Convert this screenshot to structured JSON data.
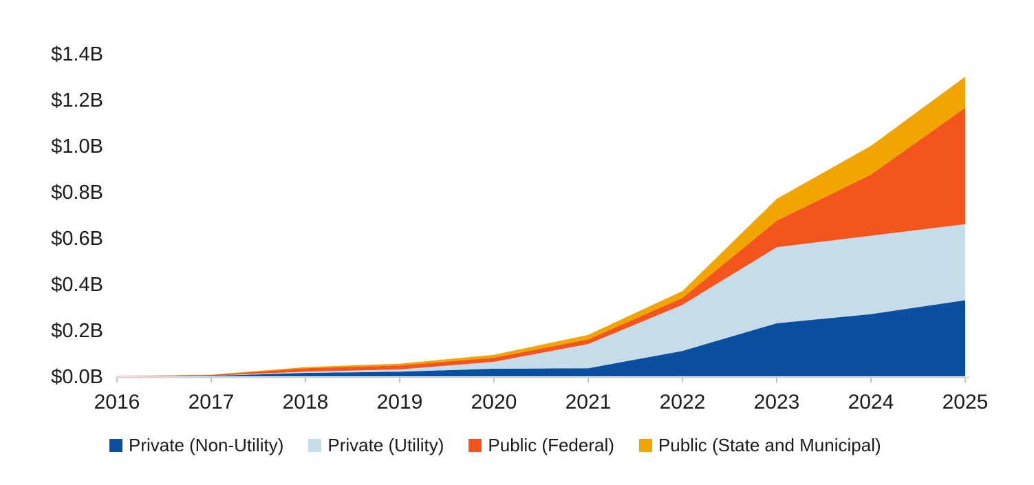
{
  "chart_data": {
    "type": "area",
    "stacked": true,
    "title": "",
    "xlabel": "",
    "ylabel": "",
    "grid": false,
    "legend_position": "bottom",
    "x_categories": [
      "2016",
      "2017",
      "2018",
      "2019",
      "2020",
      "2021",
      "2022",
      "2023",
      "2024",
      "2025"
    ],
    "y_ticks": [
      {
        "label": "$0.0B",
        "value": 0.0
      },
      {
        "label": "$0.2B",
        "value": 0.2
      },
      {
        "label": "$0.4B",
        "value": 0.4
      },
      {
        "label": "$0.6B",
        "value": 0.6
      },
      {
        "label": "$0.8B",
        "value": 0.8
      },
      {
        "label": "$1.0B",
        "value": 1.0
      },
      {
        "label": "$1.2B",
        "value": 1.2
      },
      {
        "label": "$1.4B",
        "value": 1.4
      }
    ],
    "ylim": [
      0,
      1.4
    ],
    "units": "billions of dollars",
    "series": [
      {
        "name": "Private (Non-Utility)",
        "color": "#0B4FA0",
        "values": [
          0.0,
          0.002,
          0.015,
          0.02,
          0.033,
          0.035,
          0.11,
          0.23,
          0.27,
          0.33
        ]
      },
      {
        "name": "Private (Utility)",
        "color": "#C7DCE9",
        "values": [
          0.0,
          0.001,
          0.005,
          0.01,
          0.03,
          0.105,
          0.2,
          0.33,
          0.34,
          0.33
        ]
      },
      {
        "name": "Public (Federal)",
        "color": "#F4541D",
        "values": [
          0.001,
          0.003,
          0.015,
          0.017,
          0.018,
          0.02,
          0.03,
          0.115,
          0.265,
          0.505
        ]
      },
      {
        "name": "Public (State and Municipal)",
        "color": "#F0A500",
        "values": [
          0.0,
          0.001,
          0.005,
          0.008,
          0.012,
          0.02,
          0.03,
          0.095,
          0.125,
          0.135
        ]
      }
    ],
    "stacked_totals": [
      0.001,
      0.007,
      0.04,
      0.055,
      0.093,
      0.18,
      0.37,
      0.77,
      1.0,
      1.3
    ],
    "axis_color": "#D2D0CE",
    "tick_color": "#C8C6C4",
    "label_color": "#1A1A1A"
  }
}
